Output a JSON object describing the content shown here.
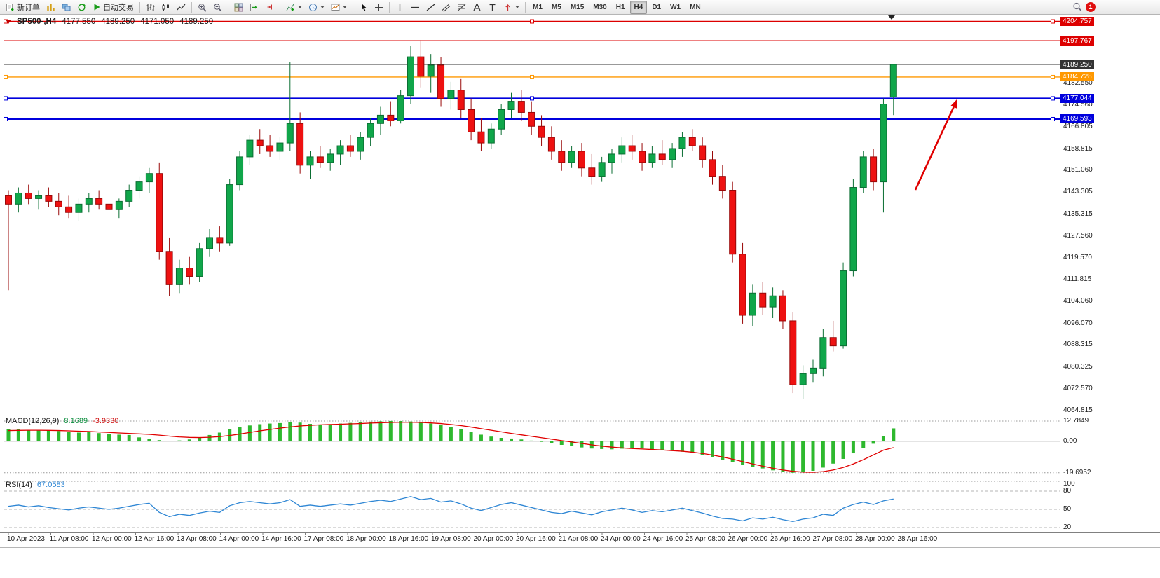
{
  "toolbar": {
    "new_order": "新订单",
    "autotrading": "自动交易",
    "timeframes": [
      "M1",
      "M5",
      "M15",
      "M30",
      "H1",
      "H4",
      "D1",
      "W1",
      "MN"
    ],
    "active_timeframe": "H4",
    "notification_count": "1"
  },
  "chart": {
    "title": "SP500-,H4",
    "open": "4177.550",
    "high": "4189.250",
    "low": "4171.050",
    "close": "4189.250"
  },
  "chart_data": {
    "type": "candlestick",
    "title": "SP500-,H4",
    "symbol": "SP500",
    "timeframe": "H4",
    "price_range": [
      4064.815,
      4206.5
    ],
    "colors": {
      "up_candle": "#10a64a",
      "down_candle": "#ee1111",
      "macd_histogram": "#2eb82e",
      "macd_signal": "#e00000",
      "rsi_line": "#2e86d4",
      "level_red": "#dd0000",
      "level_orange": "#ff9800",
      "level_blue": "#0000dd",
      "current_price": "#333333",
      "annotation_arrow": "#e00000"
    },
    "levels": [
      {
        "price": 4204.757,
        "label": "4204.757",
        "color": "#dd0000",
        "width": 1.4,
        "handles": true
      },
      {
        "price": 4197.767,
        "label": "4197.767",
        "color": "#dd0000",
        "width": 1.4,
        "handles": false
      },
      {
        "price": 4189.25,
        "label": "4189.250",
        "color": "#333333",
        "width": 1.1,
        "handles": false,
        "current": true
      },
      {
        "price": 4184.728,
        "label": "4184.728",
        "color": "#ff9800",
        "width": 1.4,
        "handles": true
      },
      {
        "price": 4177.044,
        "label": "4177.044",
        "color": "#0000dd",
        "width": 2,
        "handles": true
      },
      {
        "price": 4169.593,
        "label": "4169.593",
        "color": "#0000dd",
        "width": 2,
        "handles": true
      }
    ],
    "price_axis_labels": [
      "4182.550",
      "4174.560",
      "4166.805",
      "4158.815",
      "4151.060",
      "4143.305",
      "4135.315",
      "4127.560",
      "4119.570",
      "4111.815",
      "4104.060",
      "4096.070",
      "4088.315",
      "4080.325",
      "4072.570",
      "4064.815"
    ],
    "time_labels": [
      "10 Apr 2023",
      "11 Apr 08:00",
      "12 Apr 00:00",
      "12 Apr 16:00",
      "13 Apr 08:00",
      "14 Apr 00:00",
      "14 Apr 16:00",
      "17 Apr 08:00",
      "18 Apr 00:00",
      "18 Apr 16:00",
      "19 Apr 08:00",
      "20 Apr 00:00",
      "20 Apr 16:00",
      "21 Apr 08:00",
      "24 Apr 00:00",
      "24 Apr 16:00",
      "25 Apr 08:00",
      "26 Apr 00:00",
      "26 Apr 16:00",
      "27 Apr 08:00",
      "28 Apr 00:00",
      "28 Apr 16:00"
    ],
    "ohlc": [
      [
        4142,
        4144,
        4108,
        4139
      ],
      [
        4139,
        4145,
        4136,
        4143
      ],
      [
        4143,
        4146,
        4139,
        4141
      ],
      [
        4141,
        4144,
        4137,
        4142
      ],
      [
        4142,
        4145,
        4138,
        4140
      ],
      [
        4140,
        4143,
        4135,
        4138
      ],
      [
        4138,
        4142,
        4134,
        4136
      ],
      [
        4136,
        4141,
        4133,
        4139
      ],
      [
        4139,
        4143,
        4136,
        4141
      ],
      [
        4141,
        4144,
        4137,
        4139
      ],
      [
        4139,
        4142,
        4135,
        4137
      ],
      [
        4137,
        4141,
        4134,
        4140
      ],
      [
        4140,
        4146,
        4138,
        4144
      ],
      [
        4144,
        4149,
        4141,
        4147
      ],
      [
        4147,
        4152,
        4143,
        4150
      ],
      [
        4150,
        4154,
        4119,
        4122
      ],
      [
        4122,
        4127,
        4106,
        4110
      ],
      [
        4110,
        4119,
        4107,
        4116
      ],
      [
        4116,
        4120,
        4110,
        4113
      ],
      [
        4113,
        4125,
        4111,
        4123
      ],
      [
        4123,
        4130,
        4120,
        4127
      ],
      [
        4127,
        4131,
        4122,
        4125
      ],
      [
        4125,
        4148,
        4124,
        4146
      ],
      [
        4146,
        4158,
        4144,
        4156
      ],
      [
        4156,
        4164,
        4153,
        4162
      ],
      [
        4162,
        4166,
        4157,
        4160
      ],
      [
        4160,
        4164,
        4156,
        4158
      ],
      [
        4158,
        4163,
        4155,
        4161
      ],
      [
        4161,
        4190,
        4158,
        4168
      ],
      [
        4168,
        4172,
        4150,
        4153
      ],
      [
        4153,
        4158,
        4148,
        4156
      ],
      [
        4156,
        4160,
        4152,
        4154
      ],
      [
        4154,
        4159,
        4151,
        4157
      ],
      [
        4157,
        4162,
        4153,
        4160
      ],
      [
        4160,
        4164,
        4156,
        4158
      ],
      [
        4158,
        4165,
        4155,
        4163
      ],
      [
        4163,
        4170,
        4160,
        4168
      ],
      [
        4168,
        4174,
        4164,
        4171
      ],
      [
        4171,
        4176,
        4167,
        4169
      ],
      [
        4169,
        4180,
        4168,
        4178
      ],
      [
        4178,
        4196,
        4175,
        4192
      ],
      [
        4192,
        4198,
        4181,
        4185
      ],
      [
        4185,
        4193,
        4179,
        4189
      ],
      [
        4189,
        4192,
        4174,
        4177
      ],
      [
        4177,
        4183,
        4173,
        4180
      ],
      [
        4180,
        4184,
        4170,
        4173
      ],
      [
        4173,
        4177,
        4162,
        4165
      ],
      [
        4165,
        4170,
        4158,
        4161
      ],
      [
        4161,
        4168,
        4159,
        4166
      ],
      [
        4166,
        4175,
        4164,
        4173
      ],
      [
        4173,
        4179,
        4170,
        4176
      ],
      [
        4176,
        4180,
        4169,
        4172
      ],
      [
        4172,
        4176,
        4164,
        4167
      ],
      [
        4167,
        4171,
        4160,
        4163
      ],
      [
        4163,
        4167,
        4155,
        4158
      ],
      [
        4158,
        4162,
        4151,
        4154
      ],
      [
        4154,
        4160,
        4152,
        4158
      ],
      [
        4158,
        4161,
        4149,
        4152
      ],
      [
        4152,
        4157,
        4146,
        4149
      ],
      [
        4149,
        4156,
        4147,
        4154
      ],
      [
        4154,
        4159,
        4150,
        4157
      ],
      [
        4157,
        4163,
        4154,
        4160
      ],
      [
        4160,
        4164,
        4155,
        4158
      ],
      [
        4158,
        4161,
        4151,
        4154
      ],
      [
        4154,
        4160,
        4152,
        4157
      ],
      [
        4157,
        4162,
        4153,
        4155
      ],
      [
        4155,
        4161,
        4152,
        4159
      ],
      [
        4159,
        4165,
        4156,
        4163
      ],
      [
        4163,
        4166,
        4158,
        4160
      ],
      [
        4160,
        4163,
        4152,
        4155
      ],
      [
        4155,
        4158,
        4146,
        4149
      ],
      [
        4149,
        4153,
        4141,
        4144
      ],
      [
        4144,
        4147,
        4118,
        4121
      ],
      [
        4121,
        4125,
        4096,
        4099
      ],
      [
        4099,
        4110,
        4095,
        4107
      ],
      [
        4107,
        4111,
        4099,
        4102
      ],
      [
        4102,
        4109,
        4098,
        4106
      ],
      [
        4106,
        4108,
        4094,
        4097
      ],
      [
        4097,
        4100,
        4071,
        4074
      ],
      [
        4074,
        4081,
        4069,
        4078
      ],
      [
        4078,
        4083,
        4075,
        4080
      ],
      [
        4080,
        4094,
        4077,
        4091
      ],
      [
        4091,
        4097,
        4086,
        4088
      ],
      [
        4088,
        4118,
        4087,
        4115
      ],
      [
        4115,
        4148,
        4113,
        4145
      ],
      [
        4145,
        4158,
        4143,
        4156
      ],
      [
        4156,
        4159,
        4144,
        4147
      ],
      [
        4147,
        4177,
        4136,
        4175
      ],
      [
        4177.55,
        4189.25,
        4171.05,
        4189.25
      ]
    ],
    "indicators": {
      "macd": {
        "name": "MACD(12,26,9)",
        "main_value": "8.1689",
        "signal_value": "-3.9330",
        "scale": [
          "12.7849",
          "0.00",
          "-19.6952"
        ],
        "histogram": [
          7.5,
          7.8,
          7.2,
          6.8,
          7.0,
          6.5,
          6.0,
          5.5,
          5.8,
          5.2,
          4.6,
          4.2,
          4.0,
          2.5,
          1.5,
          0.8,
          0.4,
          0.6,
          1.2,
          2.5,
          4.0,
          5.5,
          7.5,
          9.0,
          10.0,
          10.8,
          11.2,
          11.5,
          12.2,
          11.8,
          11.0,
          10.5,
          10.8,
          11.2,
          11.6,
          12.0,
          12.4,
          12.6,
          12.8,
          12.78,
          12.5,
          12.0,
          11.2,
          10.2,
          9.0,
          7.5,
          5.8,
          4.2,
          3.0,
          2.2,
          1.8,
          1.2,
          0.5,
          -0.3,
          -1.2,
          -2.2,
          -3.0,
          -3.8,
          -4.5,
          -4.8,
          -5.0,
          -4.6,
          -4.2,
          -4.5,
          -5.0,
          -5.5,
          -6.0,
          -6.5,
          -7.2,
          -8.5,
          -10.0,
          -11.5,
          -13.0,
          -14.8,
          -16.0,
          -17.0,
          -18.2,
          -19.0,
          -19.7,
          -19.5,
          -18.5,
          -16.5,
          -14.0,
          -11.0,
          -7.5,
          -4.0,
          -1.5,
          3.5,
          8.1689
        ],
        "signal": [
          6.8,
          6.9,
          7.0,
          7.0,
          6.9,
          6.8,
          6.6,
          6.4,
          6.2,
          5.9,
          5.6,
          5.3,
          5.0,
          4.7,
          4.4,
          3.9,
          3.3,
          2.8,
          2.5,
          2.4,
          2.6,
          3.0,
          3.7,
          4.6,
          5.6,
          6.6,
          7.5,
          8.3,
          9.1,
          9.7,
          10.1,
          10.4,
          10.6,
          10.8,
          11.0,
          11.2,
          11.5,
          11.7,
          11.9,
          12.0,
          12.0,
          11.9,
          11.6,
          11.2,
          10.6,
          9.9,
          9.0,
          8.0,
          7.0,
          6.0,
          5.0,
          4.1,
          3.2,
          2.3,
          1.4,
          0.5,
          -0.4,
          -1.3,
          -2.2,
          -3.0,
          -3.6,
          -4.1,
          -4.5,
          -4.8,
          -5.1,
          -5.4,
          -5.8,
          -6.2,
          -6.8,
          -7.6,
          -8.6,
          -9.8,
          -11.2,
          -12.7,
          -14.2,
          -15.6,
          -16.9,
          -18.0,
          -18.8,
          -19.3,
          -19.4,
          -19.0,
          -18.0,
          -16.4,
          -14.2,
          -11.5,
          -8.5,
          -5.5,
          -3.933
        ]
      },
      "rsi": {
        "name": "RSI(14)",
        "value": "67.0583",
        "levels": [
          "100",
          "80",
          "50",
          "20"
        ],
        "values": [
          55,
          57,
          54,
          56,
          53,
          51,
          49,
          52,
          54,
          52,
          50,
          52,
          55,
          58,
          60,
          45,
          38,
          42,
          40,
          44,
          47,
          45,
          56,
          61,
          63,
          61,
          59,
          61,
          66,
          55,
          57,
          55,
          57,
          59,
          57,
          60,
          63,
          65,
          63,
          67,
          71,
          66,
          68,
          62,
          64,
          59,
          52,
          48,
          53,
          58,
          61,
          57,
          53,
          49,
          45,
          43,
          47,
          44,
          41,
          46,
          49,
          52,
          49,
          45,
          48,
          46,
          49,
          52,
          48,
          44,
          39,
          35,
          34,
          31,
          36,
          34,
          37,
          33,
          30,
          34,
          36,
          42,
          40,
          52,
          58,
          62,
          58,
          64,
          67.0583
        ]
      }
    },
    "annotations": [
      {
        "type": "arrow",
        "direction": "up-right",
        "color": "#e00000"
      }
    ]
  }
}
